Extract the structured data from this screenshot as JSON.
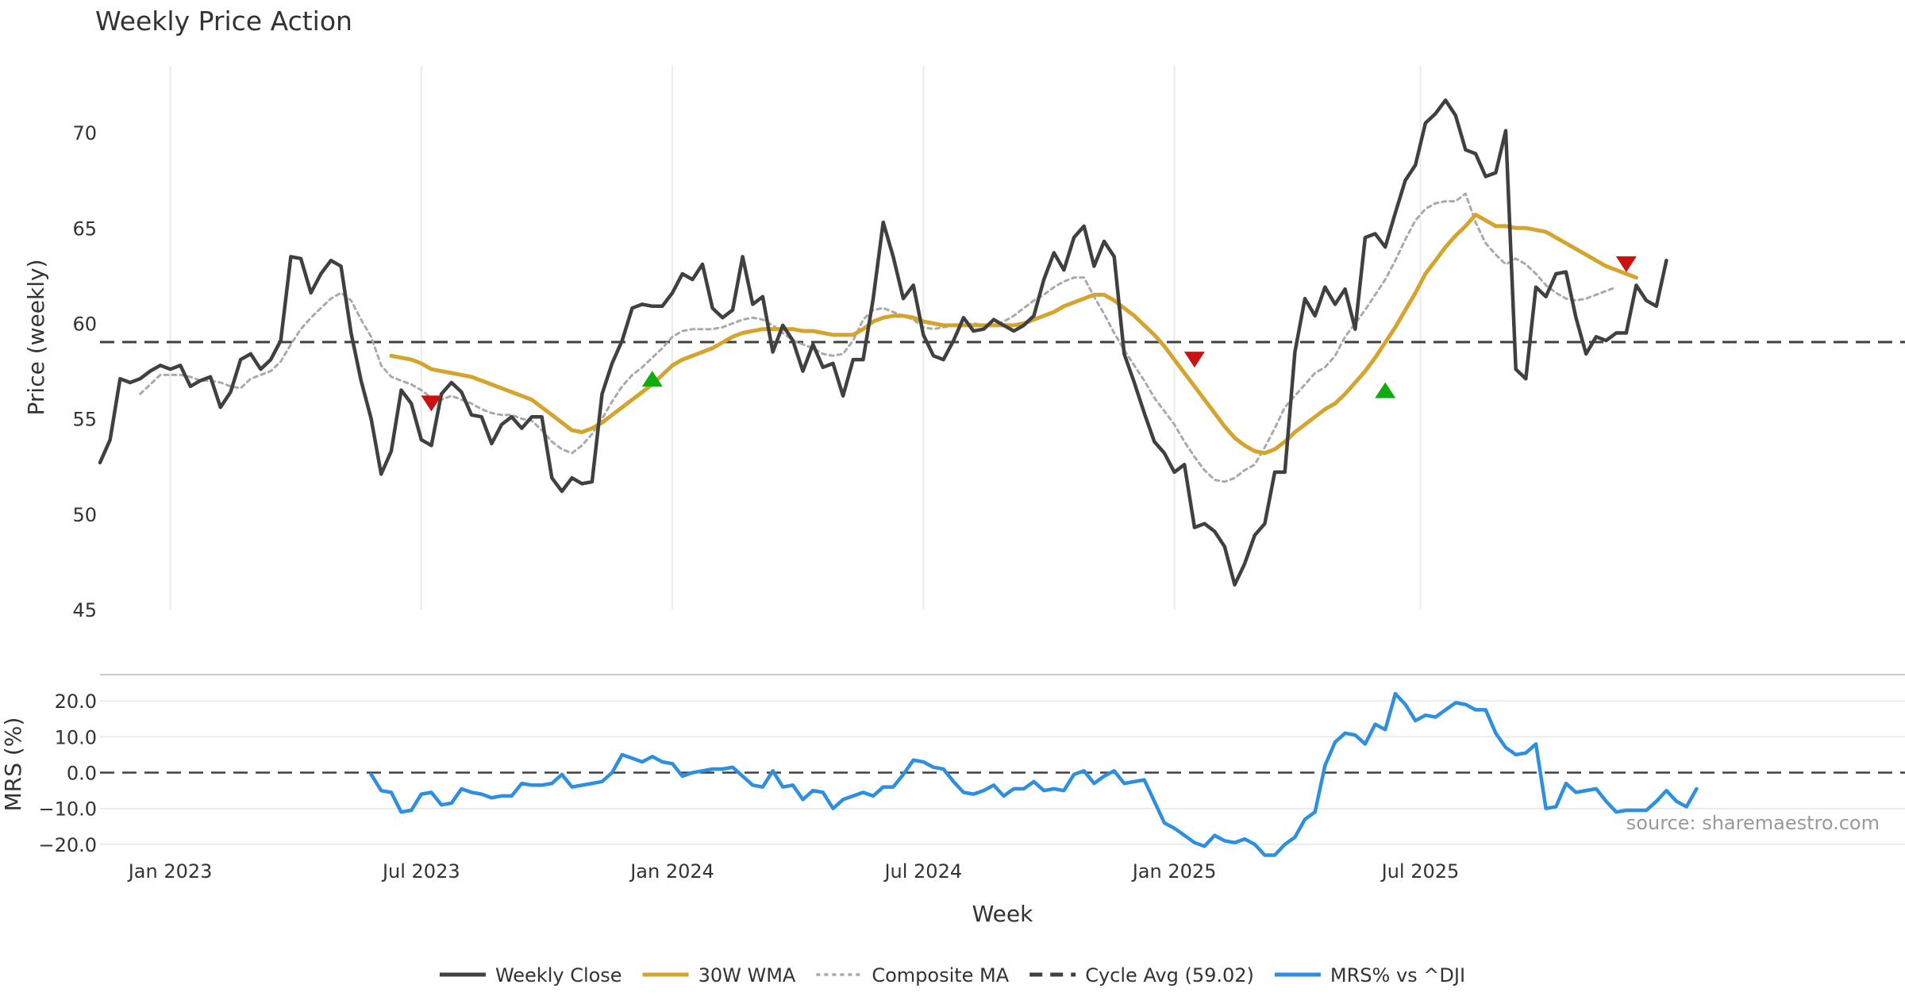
{
  "chart_data": [
    {
      "id": "price",
      "type": "line",
      "title": "Weekly Price Action",
      "ylabel": "Price (weekly)",
      "ylim": [
        45,
        73.5
      ],
      "yticks": [
        45,
        50,
        55,
        60,
        65,
        70
      ],
      "grid": "vertical",
      "start_week": 0,
      "series": [
        {
          "name": "Weekly Close",
          "color": "#404040",
          "style": "solid",
          "values": [
            52.7,
            53.9,
            57.1,
            56.9,
            57.1,
            57.5,
            57.8,
            57.6,
            57.8,
            56.7,
            57.0,
            57.2,
            55.6,
            56.4,
            58.1,
            58.4,
            57.6,
            58.1,
            59.1,
            63.5,
            63.4,
            61.6,
            62.6,
            63.3,
            63.0,
            59.5,
            57.0,
            55.0,
            52.1,
            53.3,
            56.5,
            55.8,
            53.9,
            53.6,
            56.3,
            56.9,
            56.4,
            55.2,
            55.1,
            53.7,
            54.7,
            55.1,
            54.5,
            55.1,
            55.1,
            51.9,
            51.2,
            51.9,
            51.6,
            51.7,
            56.3,
            57.9,
            59.1,
            60.8,
            61.0,
            60.9,
            60.9,
            61.6,
            62.6,
            62.3,
            63.1,
            60.8,
            60.3,
            60.7,
            63.5,
            61.0,
            61.4,
            58.5,
            59.9,
            59.1,
            57.5,
            58.9,
            57.7,
            57.9,
            56.2,
            58.1,
            58.1,
            61.3,
            65.3,
            63.5,
            61.3,
            62.0,
            59.4,
            58.3,
            58.1,
            59.1,
            60.3,
            59.6,
            59.7,
            60.2,
            59.9,
            59.6,
            59.9,
            60.4,
            62.3,
            63.7,
            62.8,
            64.5,
            65.1,
            63.0,
            64.3,
            63.5,
            58.4,
            56.9,
            55.3,
            53.8,
            53.2,
            52.2,
            52.6,
            49.3,
            49.5,
            49.1,
            48.3,
            46.3,
            47.4,
            48.9,
            49.5,
            52.2,
            52.2,
            58.5,
            61.3,
            60.4,
            61.9,
            61.0,
            61.8,
            59.7,
            64.5,
            64.7,
            64.0,
            65.8,
            67.5,
            68.3,
            70.5,
            71.0,
            71.7,
            70.9,
            69.1,
            68.9,
            67.7,
            67.9,
            70.1,
            57.6,
            57.1,
            61.9,
            61.4,
            62.6,
            62.7,
            60.3,
            58.4,
            59.3,
            59.1,
            59.5,
            59.5,
            62.0,
            61.2,
            60.9,
            63.3
          ]
        },
        {
          "name": "30W WMA",
          "color": "#D4A42C",
          "style": "solid",
          "values": [
            null,
            null,
            null,
            null,
            null,
            null,
            null,
            null,
            null,
            null,
            null,
            null,
            null,
            null,
            null,
            null,
            null,
            null,
            null,
            null,
            null,
            null,
            null,
            null,
            null,
            null,
            null,
            null,
            null,
            58.3,
            58.2,
            58.1,
            57.9,
            57.6,
            57.5,
            57.4,
            57.3,
            57.2,
            57.0,
            56.8,
            56.6,
            56.4,
            56.2,
            56.0,
            55.6,
            55.2,
            54.8,
            54.4,
            54.3,
            54.5,
            54.8,
            55.2,
            55.6,
            56.0,
            56.4,
            56.8,
            57.3,
            57.8,
            58.1,
            58.3,
            58.5,
            58.7,
            59.0,
            59.3,
            59.5,
            59.6,
            59.7,
            59.7,
            59.7,
            59.7,
            59.6,
            59.6,
            59.5,
            59.4,
            59.4,
            59.4,
            59.7,
            60.1,
            60.3,
            60.4,
            60.4,
            60.3,
            60.1,
            60.0,
            59.9,
            59.9,
            59.9,
            59.9,
            59.9,
            59.9,
            59.9,
            59.9,
            60.0,
            60.2,
            60.4,
            60.6,
            60.9,
            61.1,
            61.3,
            61.5,
            61.5,
            61.2,
            60.8,
            60.4,
            59.9,
            59.4,
            58.8,
            58.1,
            57.4,
            56.7,
            56.0,
            55.3,
            54.6,
            54.0,
            53.6,
            53.3,
            53.2,
            53.4,
            53.8,
            54.3,
            54.7,
            55.1,
            55.5,
            55.8,
            56.3,
            56.9,
            57.5,
            58.2,
            59.0,
            59.8,
            60.7,
            61.6,
            62.6,
            63.3,
            64.0,
            64.6,
            65.1,
            65.7,
            65.4,
            65.1,
            65.1,
            65.0,
            65.0,
            64.9,
            64.8,
            64.5,
            64.2,
            63.9,
            63.6,
            63.3,
            63.0,
            62.8,
            62.6,
            62.4
          ]
        },
        {
          "name": "Composite MA",
          "color": "#AAAAAA",
          "style": "dotted",
          "values": [
            null,
            null,
            null,
            null,
            56.3,
            56.8,
            57.3,
            57.3,
            57.3,
            57.2,
            57.0,
            57.0,
            56.9,
            56.7,
            56.6,
            57.1,
            57.3,
            57.5,
            58.0,
            58.9,
            59.7,
            60.3,
            60.8,
            61.3,
            61.6,
            61.2,
            60.2,
            59.3,
            57.8,
            57.2,
            57.0,
            56.8,
            56.5,
            56.1,
            56.0,
            56.2,
            56.0,
            55.8,
            55.5,
            55.3,
            55.2,
            55.2,
            55.0,
            54.9,
            54.4,
            53.8,
            53.4,
            53.2,
            53.6,
            54.2,
            55.0,
            55.9,
            56.7,
            57.3,
            57.7,
            58.2,
            58.7,
            59.3,
            59.6,
            59.7,
            59.7,
            59.7,
            59.8,
            60.0,
            60.2,
            60.3,
            60.2,
            59.9,
            59.5,
            59.1,
            58.9,
            58.7,
            58.4,
            58.3,
            58.4,
            59.1,
            60.2,
            60.7,
            60.8,
            60.6,
            60.4,
            60.2,
            59.8,
            59.7,
            59.8,
            59.9,
            59.9,
            60.0,
            59.9,
            59.9,
            60.1,
            60.4,
            60.8,
            61.2,
            61.5,
            61.9,
            62.2,
            62.4,
            62.4,
            61.4,
            60.5,
            59.5,
            58.6,
            57.8,
            57.0,
            56.1,
            55.4,
            54.7,
            53.8,
            53.0,
            52.3,
            51.8,
            51.7,
            51.9,
            52.3,
            52.6,
            53.5,
            54.5,
            55.6,
            56.2,
            56.8,
            57.4,
            57.7,
            58.3,
            59.3,
            60.0,
            60.7,
            61.5,
            62.3,
            63.3,
            64.4,
            65.4,
            66.0,
            66.3,
            66.4,
            66.4,
            66.8,
            65.3,
            64.2,
            63.6,
            63.1,
            63.4,
            63.1,
            62.6,
            62.0,
            61.6,
            61.3,
            61.2,
            61.3,
            61.5,
            61.7,
            61.9
          ]
        }
      ],
      "reference_line": {
        "name": "Cycle Avg (59.02)",
        "value": 59.02,
        "color": "#404040",
        "style": "dashed"
      },
      "markers": [
        {
          "type": "sell",
          "week": 33,
          "value": 55.8,
          "color": "#CC1111"
        },
        {
          "type": "buy",
          "week": 55,
          "value": 57.1,
          "color": "#11AA11"
        },
        {
          "type": "sell",
          "week": 109,
          "value": 58.1,
          "color": "#CC1111"
        },
        {
          "type": "buy",
          "week": 128,
          "value": 56.5,
          "color": "#11AA11"
        },
        {
          "type": "sell",
          "week": 152,
          "value": 63.1,
          "color": "#CC1111"
        }
      ]
    },
    {
      "id": "mrs",
      "type": "line",
      "ylabel": "MRS (%)",
      "xlabel": "Week",
      "ylim": [
        -24,
        26
      ],
      "yticks": [
        -20,
        -10,
        0,
        10,
        20
      ],
      "ytick_labels": [
        "−20.0",
        "−10.0",
        "0.0",
        "10.0",
        "20.0"
      ],
      "grid": "horizontal",
      "start_week": 27,
      "xticks": [
        {
          "label": "Jan 2023",
          "week": 7
        },
        {
          "label": "Jul 2023",
          "week": 32
        },
        {
          "label": "Jan 2024",
          "week": 57
        },
        {
          "label": "Jul 2024",
          "week": 82
        },
        {
          "label": "Jan 2025",
          "week": 107
        },
        {
          "label": "Jul 2025",
          "week": 131.5
        }
      ],
      "series": [
        {
          "name": "MRS% vs ^DJI",
          "color": "#2E8FE0",
          "style": "solid",
          "values": [
            -0.5,
            -5.0,
            -5.5,
            -11.0,
            -10.5,
            -6.0,
            -5.5,
            -9.0,
            -8.5,
            -4.5,
            -5.5,
            -6.0,
            -7.0,
            -6.5,
            -6.5,
            -3.0,
            -3.5,
            -3.5,
            -3.0,
            -0.5,
            -4.0,
            -3.5,
            -3.0,
            -2.5,
            0.0,
            5.0,
            4.0,
            3.0,
            4.5,
            3.0,
            2.5,
            -1.0,
            0.0,
            0.5,
            1.0,
            1.0,
            1.5,
            -1.0,
            -3.5,
            -4.0,
            0.5,
            -4.0,
            -3.5,
            -7.5,
            -5.0,
            -5.5,
            -10.0,
            -7.5,
            -6.5,
            -5.5,
            -6.5,
            -4.0,
            -4.0,
            -0.5,
            3.5,
            3.0,
            1.5,
            1.0,
            -2.5,
            -5.5,
            -6.0,
            -5.0,
            -3.5,
            -6.5,
            -4.5,
            -4.5,
            -2.5,
            -5.0,
            -4.5,
            -5.0,
            -0.5,
            0.5,
            -3.0,
            -1.0,
            0.5,
            -3.0,
            -2.5,
            -2.0,
            -8.0,
            -14.0,
            -15.5,
            -17.5,
            -19.5,
            -20.5,
            -17.5,
            -19.0,
            -19.5,
            -18.5,
            -20.0,
            -23.0,
            -23.0,
            -20.0,
            -18.0,
            -13.0,
            -11.0,
            2.0,
            8.5,
            11.0,
            10.5,
            8.0,
            13.5,
            12.0,
            22.0,
            19.0,
            14.5,
            16.0,
            15.5,
            17.5,
            19.5,
            19.0,
            17.5,
            17.5,
            11.0,
            7.0,
            5.0,
            5.5,
            8.0,
            -10.0,
            -9.5,
            -3.0,
            -5.5,
            -5.0,
            -4.5,
            -8.0,
            -11.0,
            -10.5,
            -10.5,
            -10.5,
            -8.0,
            -5.0,
            -8.0,
            -9.5,
            -4.5
          ]
        }
      ],
      "reference_line": {
        "value": 0,
        "color": "#404040",
        "style": "dashed"
      }
    }
  ],
  "legend": [
    {
      "label": "Weekly Close",
      "color": "#404040",
      "style": "solid"
    },
    {
      "label": "30W WMA",
      "color": "#D4A42C",
      "style": "solid"
    },
    {
      "label": "Composite MA",
      "color": "#AAAAAA",
      "style": "dotted"
    },
    {
      "label": "Cycle Avg (59.02)",
      "color": "#404040",
      "style": "dashed"
    },
    {
      "label": "MRS% vs ^DJI",
      "color": "#2E8FE0",
      "style": "solid"
    }
  ],
  "source_text": "source: sharemaestro.com"
}
